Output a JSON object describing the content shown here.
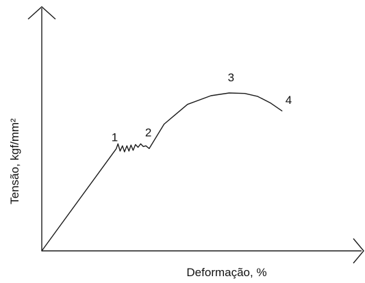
{
  "chart_data": {
    "type": "line",
    "title": "",
    "xlabel": "Deformação, %",
    "ylabel": "Tensão, kgf/mm²",
    "xticks": [],
    "yticks": [],
    "grid": false,
    "legend": "none",
    "line_color": "#1a1a1a",
    "series": [
      {
        "x": [
          0,
          28.6,
          29.3,
          30.1,
          31.0,
          31.8,
          32.7,
          33.5,
          34.3,
          35.1,
          36.0,
          37.0,
          38.0,
          39.0,
          40.0,
          41.3,
          47.0,
          56.0,
          65.0,
          72.0,
          78.0,
          83.0,
          88.0,
          92.3
        ],
        "y": [
          0,
          40.9,
          42.9,
          40.0,
          42.1,
          39.7,
          42.1,
          40.0,
          42.4,
          40.3,
          42.6,
          41.5,
          42.9,
          41.8,
          42.1,
          41.0,
          50.8,
          58.7,
          62.2,
          63.3,
          63.1,
          61.9,
          59.2,
          56.1
        ]
      }
    ],
    "point_labels": [
      {
        "text": "1",
        "x": 28.6,
        "y": 40.9
      },
      {
        "text": "2",
        "x": 41.3,
        "y": 41.0
      },
      {
        "text": "3",
        "x": 72.0,
        "y": 63.3
      },
      {
        "text": "4",
        "x": 92.3,
        "y": 56.1
      }
    ]
  }
}
